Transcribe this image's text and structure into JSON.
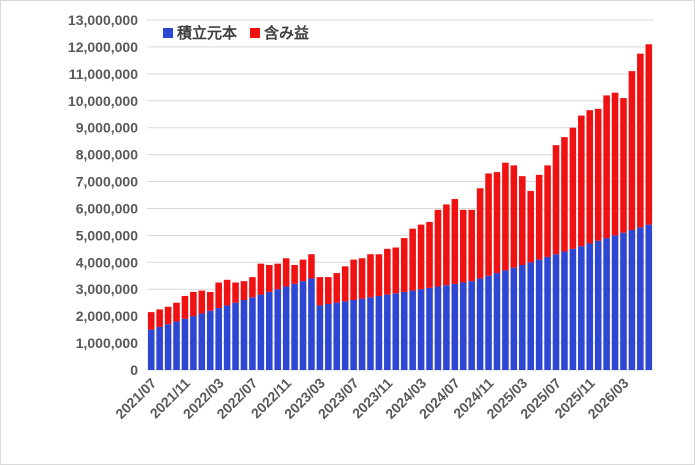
{
  "chart_data": {
    "type": "bar",
    "stacked": true,
    "ylim": [
      0,
      13000000
    ],
    "y_ticks": [
      "0",
      "1,000,000",
      "2,000,000",
      "3,000,000",
      "4,000,000",
      "5,000,000",
      "6,000,000",
      "7,000,000",
      "8,000,000",
      "9,000,000",
      "10,000,000",
      "11,000,000",
      "12,000,000",
      "13,000,000"
    ],
    "x_tick_labels": [
      "2021/07",
      "2021/11",
      "2022/03",
      "2022/07",
      "2022/11",
      "2023/03",
      "2023/07",
      "2023/11",
      "2024/03",
      "2024/07",
      "2024/11",
      "2025/03",
      "2025/07",
      "2025/11",
      "2026/03"
    ],
    "grid": true,
    "legend_position": "top-left",
    "categories": [
      "2021/07",
      "2021/08",
      "2021/09",
      "2021/10",
      "2021/11",
      "2021/12",
      "2022/01",
      "2022/02",
      "2022/03",
      "2022/04",
      "2022/05",
      "2022/06",
      "2022/07",
      "2022/08",
      "2022/09",
      "2022/10",
      "2022/11",
      "2022/12",
      "2023/01",
      "2023/02",
      "2023/03",
      "2023/04",
      "2023/05",
      "2023/06",
      "2023/07",
      "2023/08",
      "2023/09",
      "2023/10",
      "2023/11",
      "2023/12",
      "2024/01",
      "2024/02",
      "2024/03",
      "2024/04",
      "2024/05",
      "2024/06",
      "2024/07",
      "2024/08",
      "2024/09",
      "2024/10",
      "2024/11",
      "2024/12",
      "2025/01",
      "2025/02",
      "2025/03",
      "2025/04",
      "2025/05",
      "2025/06",
      "2025/07",
      "2025/08",
      "2025/09",
      "2025/10",
      "2025/11",
      "2025/12",
      "2026/01",
      "2026/02",
      "2026/03",
      "2026/04",
      "2026/05",
      "2026/06"
    ],
    "series": [
      {
        "name": "積立元本",
        "color": "#2e46d4",
        "values": [
          1500000,
          1600000,
          1700000,
          1800000,
          1900000,
          2000000,
          2100000,
          2200000,
          2300000,
          2400000,
          2500000,
          2600000,
          2700000,
          2800000,
          2900000,
          3000000,
          3100000,
          3200000,
          3300000,
          3400000,
          2400000,
          2450000,
          2500000,
          2550000,
          2600000,
          2650000,
          2700000,
          2750000,
          2800000,
          2850000,
          2900000,
          2950000,
          3000000,
          3050000,
          3100000,
          3150000,
          3200000,
          3250000,
          3300000,
          3400000,
          3500000,
          3600000,
          3700000,
          3800000,
          3900000,
          4000000,
          4100000,
          4200000,
          4300000,
          4400000,
          4500000,
          4600000,
          4700000,
          4800000,
          4900000,
          5000000,
          5100000,
          5200000,
          5300000,
          5400000
        ]
      },
      {
        "name": "含み益",
        "color": "#f01212",
        "values": [
          650000,
          650000,
          650000,
          700000,
          850000,
          900000,
          850000,
          700000,
          950000,
          950000,
          750000,
          700000,
          750000,
          1150000,
          1000000,
          950000,
          1050000,
          700000,
          800000,
          900000,
          1050000,
          1000000,
          1100000,
          1300000,
          1500000,
          1500000,
          1600000,
          1550000,
          1700000,
          1700000,
          2000000,
          2300000,
          2400000,
          2450000,
          2850000,
          3000000,
          3150000,
          2700000,
          2650000,
          3350000,
          3800000,
          3750000,
          4000000,
          3800000,
          3300000,
          2650000,
          3150000,
          3400000,
          4050000,
          4250000,
          4500000,
          4850000,
          4950000,
          4900000,
          5300000,
          5300000,
          5000000,
          5900000,
          6450000,
          6700000
        ]
      }
    ]
  }
}
